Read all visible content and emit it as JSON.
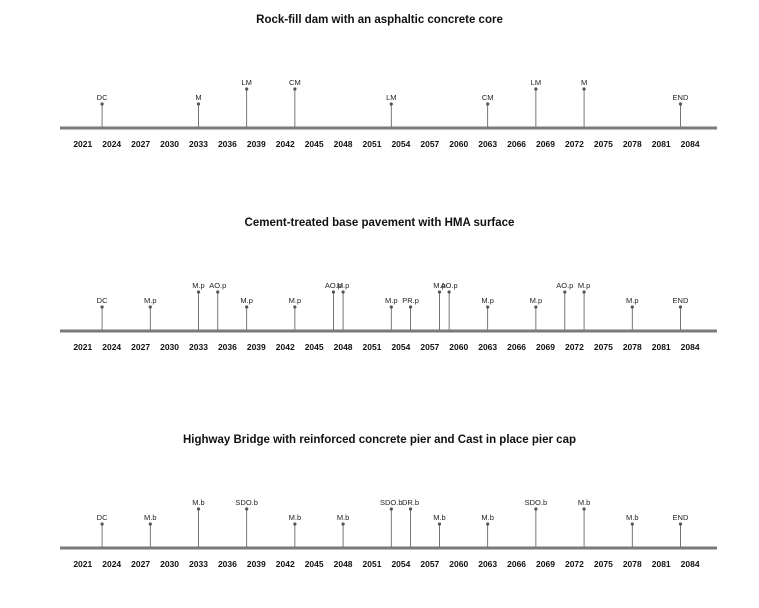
{
  "chart_data": [
    {
      "type": "timeline",
      "title": "Rock-fill dam with an asphaltic concrete core",
      "x_ticks": [
        2021,
        2024,
        2027,
        2030,
        2033,
        2036,
        2039,
        2042,
        2045,
        2048,
        2051,
        2054,
        2057,
        2060,
        2063,
        2066,
        2069,
        2072,
        2075,
        2078,
        2081,
        2084
      ],
      "xlim": [
        2018.5,
        2086.5
      ],
      "events": [
        {
          "label": "DC",
          "year": 2023,
          "level": 1
        },
        {
          "label": "M",
          "year": 2033,
          "level": 1
        },
        {
          "label": "LM",
          "year": 2038,
          "level": 2
        },
        {
          "label": "CM",
          "year": 2043,
          "level": 2
        },
        {
          "label": "LM",
          "year": 2053,
          "level": 1
        },
        {
          "label": "CM",
          "year": 2063,
          "level": 1
        },
        {
          "label": "LM",
          "year": 2068,
          "level": 2
        },
        {
          "label": "M",
          "year": 2073,
          "level": 2
        },
        {
          "label": "END",
          "year": 2083,
          "level": 1
        }
      ]
    },
    {
      "type": "timeline",
      "title": "Cement-treated base pavement with HMA surface",
      "x_ticks": [
        2021,
        2024,
        2027,
        2030,
        2033,
        2036,
        2039,
        2042,
        2045,
        2048,
        2051,
        2054,
        2057,
        2060,
        2063,
        2066,
        2069,
        2072,
        2075,
        2078,
        2081,
        2084
      ],
      "xlim": [
        2018.5,
        2086.5
      ],
      "events": [
        {
          "label": "DC",
          "year": 2023,
          "level": 1
        },
        {
          "label": "M.p",
          "year": 2028,
          "level": 1
        },
        {
          "label": "M.p",
          "year": 2033,
          "level": 2
        },
        {
          "label": "AO.p",
          "year": 2035,
          "level": 2
        },
        {
          "label": "M.p",
          "year": 2038,
          "level": 1
        },
        {
          "label": "M.p",
          "year": 2043,
          "level": 1
        },
        {
          "label": "AO.p",
          "year": 2047,
          "level": 2
        },
        {
          "label": "M.p",
          "year": 2048,
          "level": 2
        },
        {
          "label": "M.p",
          "year": 2053,
          "level": 1
        },
        {
          "label": "PR.p",
          "year": 2055,
          "level": 1
        },
        {
          "label": "M.p",
          "year": 2058,
          "level": 2
        },
        {
          "label": "AO.p",
          "year": 2059,
          "level": 2
        },
        {
          "label": "M.p",
          "year": 2063,
          "level": 1
        },
        {
          "label": "M.p",
          "year": 2068,
          "level": 1
        },
        {
          "label": "AO.p",
          "year": 2071,
          "level": 2
        },
        {
          "label": "M.p",
          "year": 2073,
          "level": 2
        },
        {
          "label": "M.p",
          "year": 2078,
          "level": 1
        },
        {
          "label": "END",
          "year": 2083,
          "level": 1
        }
      ]
    },
    {
      "type": "timeline",
      "title": "Highway Bridge with reinforced concrete pier and Cast in place pier cap",
      "x_ticks": [
        2021,
        2024,
        2027,
        2030,
        2033,
        2036,
        2039,
        2042,
        2045,
        2048,
        2051,
        2054,
        2057,
        2060,
        2063,
        2066,
        2069,
        2072,
        2075,
        2078,
        2081,
        2084
      ],
      "xlim": [
        2018.5,
        2086.5
      ],
      "events": [
        {
          "label": "DC",
          "year": 2023,
          "level": 1
        },
        {
          "label": "M.b",
          "year": 2028,
          "level": 1
        },
        {
          "label": "M.b",
          "year": 2033,
          "level": 2
        },
        {
          "label": "SDO.b",
          "year": 2038,
          "level": 2
        },
        {
          "label": "M.b",
          "year": 2043,
          "level": 1
        },
        {
          "label": "M.b",
          "year": 2048,
          "level": 1
        },
        {
          "label": "SDO.b",
          "year": 2053,
          "level": 2
        },
        {
          "label": "DR.b",
          "year": 2055,
          "level": 2
        },
        {
          "label": "M.b",
          "year": 2058,
          "level": 1
        },
        {
          "label": "M.b",
          "year": 2063,
          "level": 1
        },
        {
          "label": "SDO.b",
          "year": 2068,
          "level": 2
        },
        {
          "label": "M.b",
          "year": 2073,
          "level": 2
        },
        {
          "label": "M.b",
          "year": 2078,
          "level": 1
        },
        {
          "label": "END",
          "year": 2083,
          "level": 1
        }
      ]
    }
  ]
}
